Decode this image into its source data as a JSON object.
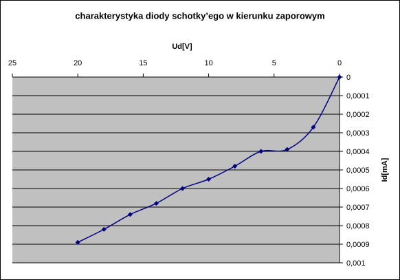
{
  "chart_data": {
    "type": "line",
    "title": "charakterystyka diody schotky’ego w kierunku zaporowym",
    "xlabel": "Ud[V]",
    "ylabel": "Id[mA]",
    "x": [
      0,
      2,
      4,
      6,
      8,
      10,
      12,
      14,
      16,
      18,
      20
    ],
    "series": [
      {
        "color": "#000080",
        "values": [
          0,
          0.00027,
          0.00039,
          0.0004,
          0.00048,
          0.00055,
          0.0006,
          0.00068,
          0.00074,
          0.00082,
          0.00089
        ]
      }
    ],
    "xlim": [
      25,
      0
    ],
    "xticks": [
      25,
      20,
      15,
      10,
      5,
      0
    ],
    "ylim": [
      0.001,
      0
    ],
    "yticks": [
      0,
      {
        "value": 0.0001,
        "label": "0,0001"
      },
      {
        "value": 0.0002,
        "label": "0,0002"
      },
      {
        "value": 0.0003,
        "label": "0,0003"
      },
      {
        "value": 0.0004,
        "label": "0,0004"
      },
      {
        "value": 0.0005,
        "label": "0,0005"
      },
      {
        "value": 0.0006,
        "label": "0,0006"
      },
      {
        "value": 0.0007,
        "label": "0,0007"
      },
      {
        "value": 0.0008,
        "label": "0,0008"
      },
      {
        "value": 0.0009,
        "label": "0,0009"
      },
      {
        "value": 0.001,
        "label": "0,001"
      }
    ],
    "grid": true,
    "smooth": true,
    "marker": "diamond"
  }
}
